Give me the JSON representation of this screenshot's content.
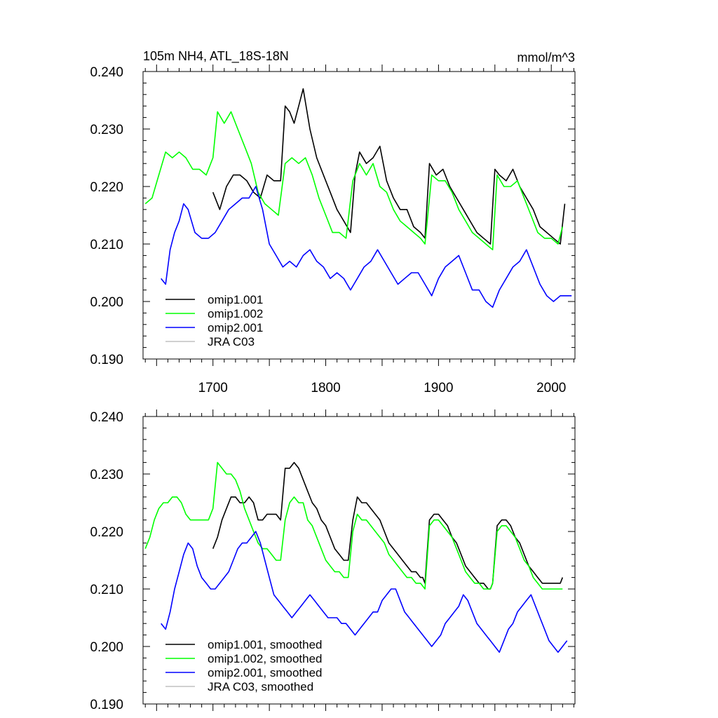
{
  "figure": {
    "title_left": "105m NH4, ATL_18S-18N",
    "title_right": "mmol/m^3"
  },
  "colors": {
    "omip1_001": "#000000",
    "omip1_002": "#00ff00",
    "omip2_001": "#0000ff",
    "jra_c03": "#c0c0c0"
  },
  "chart_data": [
    {
      "type": "line",
      "title": "105m NH4, ATL_18S-18N",
      "units": "mmol/m^3",
      "xlabel": "",
      "ylabel": "",
      "xlim": [
        1638,
        2021
      ],
      "ylim": [
        0.19,
        0.24
      ],
      "xticks": [
        "1700",
        "1800",
        "1900",
        "2000"
      ],
      "yticks": [
        "0.190",
        "0.200",
        "0.210",
        "0.220",
        "0.230",
        "0.240"
      ],
      "legend": [
        "omip1.001",
        "omip1.002",
        "omip2.001",
        "JRA C03"
      ],
      "legend_position": "bottom-left",
      "series": [
        {
          "name": "omip1.001",
          "color": "#000000",
          "x": [
            1700,
            1706,
            1712,
            1718,
            1724,
            1730,
            1736,
            1742,
            1748,
            1754,
            1760,
            1764,
            1768,
            1772,
            1776,
            1780,
            1786,
            1792,
            1798,
            1804,
            1810,
            1816,
            1822,
            1826,
            1830,
            1836,
            1842,
            1848,
            1854,
            1860,
            1866,
            1872,
            1878,
            1884,
            1888,
            1892,
            1898,
            1904,
            1910,
            1916,
            1922,
            1928,
            1934,
            1940,
            1946,
            1950,
            1954,
            1960,
            1966,
            1972,
            1978,
            1984,
            1990,
            1996,
            2002,
            2008,
            2012
          ],
          "y": [
            0.219,
            0.216,
            0.22,
            0.222,
            0.222,
            0.221,
            0.219,
            0.218,
            0.222,
            0.221,
            0.221,
            0.234,
            0.233,
            0.231,
            0.234,
            0.237,
            0.23,
            0.225,
            0.222,
            0.219,
            0.216,
            0.214,
            0.212,
            0.222,
            0.226,
            0.224,
            0.225,
            0.227,
            0.221,
            0.218,
            0.216,
            0.216,
            0.213,
            0.212,
            0.211,
            0.224,
            0.222,
            0.223,
            0.22,
            0.218,
            0.216,
            0.214,
            0.212,
            0.211,
            0.21,
            0.223,
            0.222,
            0.221,
            0.223,
            0.22,
            0.218,
            0.216,
            0.213,
            0.212,
            0.211,
            0.21,
            0.217
          ]
        },
        {
          "name": "omip1.002",
          "color": "#00ff00",
          "x": [
            1640,
            1646,
            1652,
            1658,
            1664,
            1670,
            1676,
            1682,
            1688,
            1694,
            1700,
            1704,
            1710,
            1716,
            1722,
            1728,
            1734,
            1740,
            1746,
            1752,
            1758,
            1764,
            1770,
            1776,
            1782,
            1788,
            1794,
            1800,
            1806,
            1812,
            1818,
            1824,
            1830,
            1836,
            1842,
            1848,
            1854,
            1860,
            1866,
            1872,
            1878,
            1884,
            1888,
            1894,
            1900,
            1906,
            1912,
            1918,
            1924,
            1930,
            1936,
            1942,
            1948,
            1952,
            1958,
            1964,
            1970,
            1976,
            1982,
            1988,
            1994,
            2000,
            2006,
            2010
          ],
          "y": [
            0.217,
            0.218,
            0.222,
            0.226,
            0.225,
            0.226,
            0.225,
            0.223,
            0.223,
            0.222,
            0.225,
            0.233,
            0.231,
            0.233,
            0.23,
            0.227,
            0.224,
            0.219,
            0.217,
            0.216,
            0.215,
            0.224,
            0.225,
            0.224,
            0.225,
            0.222,
            0.218,
            0.215,
            0.212,
            0.212,
            0.211,
            0.221,
            0.224,
            0.222,
            0.224,
            0.22,
            0.219,
            0.216,
            0.214,
            0.213,
            0.212,
            0.211,
            0.21,
            0.222,
            0.221,
            0.221,
            0.219,
            0.216,
            0.214,
            0.212,
            0.211,
            0.21,
            0.209,
            0.222,
            0.22,
            0.22,
            0.221,
            0.218,
            0.215,
            0.212,
            0.211,
            0.211,
            0.21,
            0.213
          ]
        },
        {
          "name": "omip2.001",
          "color": "#0000ff",
          "x": [
            1654,
            1658,
            1662,
            1666,
            1670,
            1674,
            1678,
            1684,
            1690,
            1696,
            1702,
            1708,
            1714,
            1720,
            1726,
            1732,
            1738,
            1744,
            1750,
            1756,
            1762,
            1768,
            1774,
            1780,
            1786,
            1792,
            1798,
            1804,
            1810,
            1816,
            1822,
            1828,
            1834,
            1840,
            1846,
            1852,
            1858,
            1864,
            1870,
            1876,
            1882,
            1888,
            1894,
            1900,
            1906,
            1912,
            1918,
            1924,
            1930,
            1936,
            1942,
            1948,
            1954,
            1960,
            1966,
            1972,
            1978,
            1984,
            1990,
            1996,
            2002,
            2008,
            2014,
            2018
          ],
          "y": [
            0.204,
            0.203,
            0.209,
            0.212,
            0.214,
            0.217,
            0.216,
            0.212,
            0.211,
            0.211,
            0.212,
            0.214,
            0.216,
            0.217,
            0.218,
            0.218,
            0.22,
            0.216,
            0.21,
            0.208,
            0.206,
            0.207,
            0.206,
            0.208,
            0.209,
            0.207,
            0.206,
            0.204,
            0.205,
            0.204,
            0.202,
            0.204,
            0.206,
            0.207,
            0.209,
            0.207,
            0.205,
            0.203,
            0.204,
            0.205,
            0.205,
            0.203,
            0.201,
            0.204,
            0.206,
            0.207,
            0.208,
            0.205,
            0.202,
            0.202,
            0.2,
            0.199,
            0.202,
            0.204,
            0.206,
            0.207,
            0.209,
            0.206,
            0.203,
            0.201,
            0.2,
            0.201,
            0.201,
            0.201
          ]
        }
      ]
    },
    {
      "type": "line",
      "title": "",
      "xlabel": "",
      "ylabel": "",
      "xlim": [
        1638,
        2021
      ],
      "ylim": [
        0.19,
        0.24
      ],
      "yticks": [
        "0.190",
        "0.200",
        "0.210",
        "0.220",
        "0.230",
        "0.240"
      ],
      "legend": [
        "omip1.001, smoothed",
        "omip1.002, smoothed",
        "omip2.001, smoothed",
        "JRA C03, smoothed"
      ],
      "legend_position": "bottom-left",
      "series": [
        {
          "name": "omip1.001, smoothed",
          "color": "#000000",
          "x": [
            1700,
            1704,
            1708,
            1712,
            1716,
            1720,
            1724,
            1728,
            1732,
            1736,
            1740,
            1744,
            1748,
            1752,
            1756,
            1760,
            1764,
            1768,
            1772,
            1776,
            1780,
            1784,
            1788,
            1792,
            1796,
            1800,
            1804,
            1808,
            1812,
            1816,
            1820,
            1824,
            1828,
            1832,
            1836,
            1840,
            1844,
            1848,
            1852,
            1856,
            1860,
            1864,
            1868,
            1872,
            1876,
            1880,
            1884,
            1886,
            1888,
            1892,
            1896,
            1900,
            1904,
            1908,
            1912,
            1916,
            1920,
            1924,
            1928,
            1932,
            1936,
            1940,
            1944,
            1946,
            1948,
            1952,
            1956,
            1960,
            1964,
            1968,
            1972,
            1976,
            1980,
            1984,
            1988,
            1992,
            1996,
            2000,
            2004,
            2008,
            2010
          ],
          "y": [
            0.217,
            0.219,
            0.222,
            0.224,
            0.226,
            0.226,
            0.225,
            0.225,
            0.226,
            0.225,
            0.222,
            0.222,
            0.223,
            0.223,
            0.223,
            0.222,
            0.231,
            0.231,
            0.232,
            0.231,
            0.229,
            0.227,
            0.225,
            0.224,
            0.222,
            0.221,
            0.219,
            0.217,
            0.216,
            0.215,
            0.215,
            0.222,
            0.226,
            0.225,
            0.225,
            0.224,
            0.223,
            0.222,
            0.22,
            0.218,
            0.217,
            0.216,
            0.215,
            0.214,
            0.213,
            0.213,
            0.212,
            0.212,
            0.211,
            0.222,
            0.223,
            0.223,
            0.222,
            0.221,
            0.219,
            0.218,
            0.216,
            0.214,
            0.213,
            0.212,
            0.211,
            0.211,
            0.21,
            0.21,
            0.211,
            0.221,
            0.222,
            0.222,
            0.221,
            0.219,
            0.218,
            0.216,
            0.214,
            0.213,
            0.212,
            0.211,
            0.211,
            0.211,
            0.211,
            0.211,
            0.212
          ]
        },
        {
          "name": "omip1.002, smoothed",
          "color": "#00ff00",
          "x": [
            1640,
            1644,
            1648,
            1652,
            1656,
            1660,
            1664,
            1668,
            1672,
            1676,
            1680,
            1684,
            1688,
            1692,
            1696,
            1700,
            1704,
            1708,
            1712,
            1716,
            1720,
            1724,
            1728,
            1732,
            1736,
            1740,
            1744,
            1748,
            1752,
            1756,
            1760,
            1764,
            1768,
            1772,
            1776,
            1780,
            1784,
            1788,
            1792,
            1796,
            1800,
            1804,
            1808,
            1812,
            1816,
            1820,
            1824,
            1828,
            1832,
            1836,
            1840,
            1844,
            1848,
            1852,
            1856,
            1860,
            1864,
            1868,
            1872,
            1876,
            1880,
            1884,
            1888,
            1892,
            1896,
            1900,
            1904,
            1908,
            1912,
            1916,
            1920,
            1924,
            1928,
            1932,
            1936,
            1940,
            1944,
            1946,
            1948,
            1952,
            1956,
            1960,
            1964,
            1968,
            1972,
            1976,
            1980,
            1984,
            1988,
            1992,
            1996,
            2000,
            2004,
            2008,
            2010
          ],
          "y": [
            0.217,
            0.219,
            0.222,
            0.224,
            0.225,
            0.225,
            0.226,
            0.226,
            0.225,
            0.223,
            0.222,
            0.222,
            0.222,
            0.222,
            0.222,
            0.224,
            0.232,
            0.231,
            0.23,
            0.23,
            0.229,
            0.227,
            0.224,
            0.222,
            0.22,
            0.218,
            0.217,
            0.217,
            0.216,
            0.215,
            0.215,
            0.222,
            0.225,
            0.226,
            0.225,
            0.225,
            0.222,
            0.221,
            0.219,
            0.217,
            0.215,
            0.214,
            0.213,
            0.213,
            0.212,
            0.212,
            0.22,
            0.223,
            0.222,
            0.222,
            0.221,
            0.22,
            0.219,
            0.218,
            0.216,
            0.215,
            0.214,
            0.213,
            0.212,
            0.212,
            0.211,
            0.211,
            0.21,
            0.221,
            0.222,
            0.222,
            0.221,
            0.22,
            0.219,
            0.217,
            0.215,
            0.213,
            0.212,
            0.211,
            0.211,
            0.21,
            0.21,
            0.21,
            0.211,
            0.22,
            0.221,
            0.221,
            0.22,
            0.219,
            0.217,
            0.215,
            0.214,
            0.212,
            0.211,
            0.21,
            0.21,
            0.21,
            0.21,
            0.21,
            0.21
          ]
        },
        {
          "name": "omip2.001, smoothed",
          "color": "#0000ff",
          "x": [
            1654,
            1658,
            1662,
            1666,
            1670,
            1674,
            1678,
            1682,
            1686,
            1690,
            1694,
            1698,
            1702,
            1706,
            1710,
            1714,
            1718,
            1722,
            1726,
            1730,
            1734,
            1738,
            1742,
            1746,
            1750,
            1754,
            1758,
            1762,
            1766,
            1770,
            1774,
            1778,
            1782,
            1786,
            1790,
            1794,
            1798,
            1802,
            1806,
            1810,
            1814,
            1818,
            1822,
            1826,
            1830,
            1834,
            1838,
            1842,
            1846,
            1850,
            1854,
            1858,
            1862,
            1866,
            1870,
            1874,
            1878,
            1882,
            1886,
            1890,
            1894,
            1898,
            1902,
            1906,
            1910,
            1914,
            1918,
            1922,
            1926,
            1930,
            1934,
            1938,
            1942,
            1946,
            1950,
            1954,
            1958,
            1962,
            1966,
            1970,
            1974,
            1978,
            1982,
            1986,
            1990,
            1994,
            1998,
            2002,
            2006,
            2010,
            2014
          ],
          "y": [
            0.204,
            0.203,
            0.206,
            0.21,
            0.213,
            0.216,
            0.218,
            0.217,
            0.214,
            0.212,
            0.211,
            0.21,
            0.21,
            0.211,
            0.212,
            0.213,
            0.215,
            0.217,
            0.218,
            0.218,
            0.219,
            0.22,
            0.218,
            0.215,
            0.212,
            0.209,
            0.208,
            0.207,
            0.206,
            0.205,
            0.206,
            0.207,
            0.208,
            0.209,
            0.208,
            0.207,
            0.206,
            0.205,
            0.205,
            0.205,
            0.204,
            0.204,
            0.203,
            0.202,
            0.203,
            0.204,
            0.205,
            0.206,
            0.206,
            0.208,
            0.209,
            0.21,
            0.21,
            0.208,
            0.206,
            0.205,
            0.204,
            0.203,
            0.202,
            0.201,
            0.2,
            0.201,
            0.202,
            0.204,
            0.205,
            0.206,
            0.207,
            0.209,
            0.208,
            0.206,
            0.204,
            0.203,
            0.202,
            0.201,
            0.2,
            0.199,
            0.201,
            0.203,
            0.204,
            0.206,
            0.207,
            0.208,
            0.209,
            0.207,
            0.205,
            0.203,
            0.201,
            0.2,
            0.199,
            0.2,
            0.201
          ]
        }
      ]
    }
  ]
}
